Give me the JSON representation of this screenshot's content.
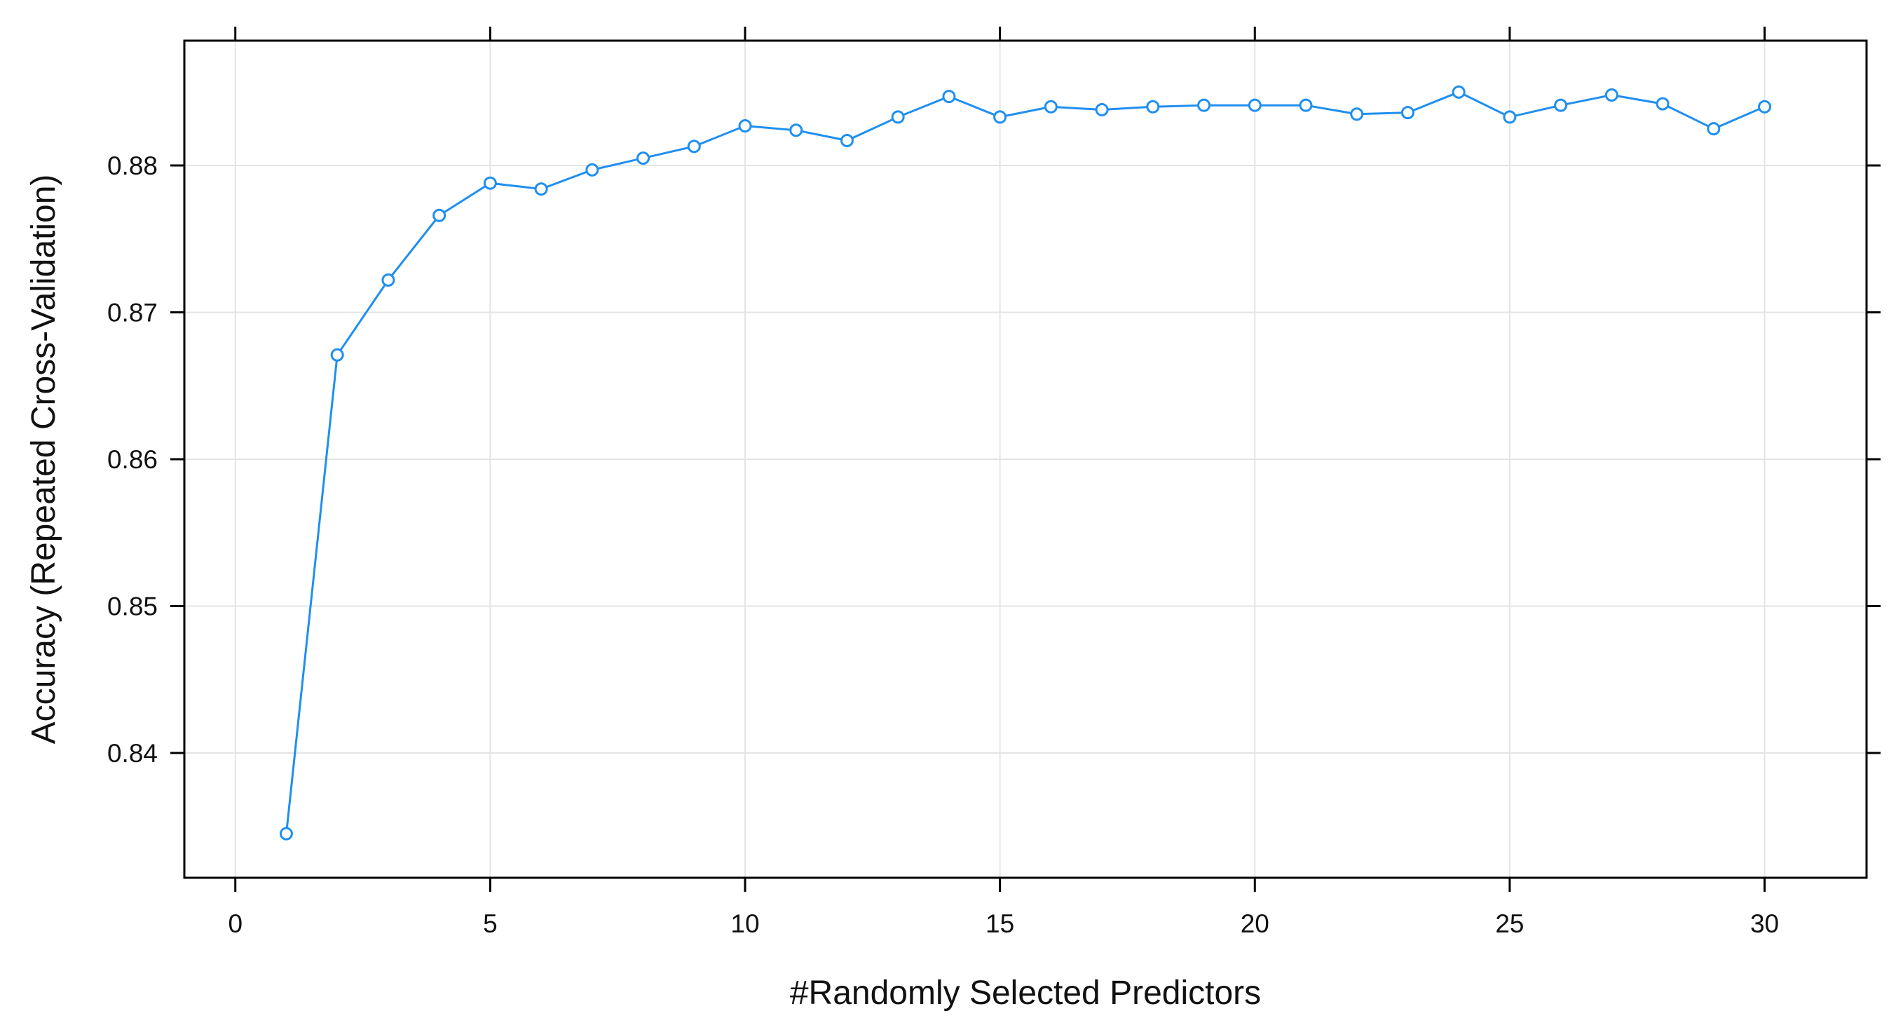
{
  "chart_data": {
    "type": "line",
    "title": "",
    "xlabel": "#Randomly Selected Predictors",
    "ylabel": "Accuracy (Repeated Cross-Validation)",
    "xlim": [
      -1,
      32
    ],
    "ylim": [
      0.8315,
      0.8885
    ],
    "x_ticks": [
      0,
      5,
      10,
      15,
      20,
      25,
      30
    ],
    "x_tick_labels": [
      "0",
      "5",
      "10",
      "15",
      "20",
      "25",
      "30"
    ],
    "y_ticks": [
      0.84,
      0.85,
      0.86,
      0.87,
      0.88
    ],
    "y_tick_labels": [
      "0.84",
      "0.85",
      "0.86",
      "0.87",
      "0.88"
    ],
    "grid": true,
    "legend": "none",
    "series": [
      {
        "color": "#1f8ff0",
        "marker": "open-circle",
        "x": [
          1,
          2,
          3,
          4,
          5,
          6,
          7,
          8,
          9,
          10,
          11,
          12,
          13,
          14,
          15,
          16,
          17,
          18,
          19,
          20,
          21,
          22,
          23,
          24,
          25,
          26,
          27,
          28,
          29,
          30
        ],
        "values": [
          0.8345,
          0.8671,
          0.8722,
          0.8766,
          0.8788,
          0.8784,
          0.8797,
          0.8805,
          0.8813,
          0.8827,
          0.8824,
          0.8817,
          0.8833,
          0.8847,
          0.8833,
          0.884,
          0.8838,
          0.884,
          0.8841,
          0.8841,
          0.8841,
          0.8835,
          0.8836,
          0.885,
          0.8833,
          0.8841,
          0.8848,
          0.8842,
          0.8825,
          0.884
        ]
      }
    ]
  }
}
